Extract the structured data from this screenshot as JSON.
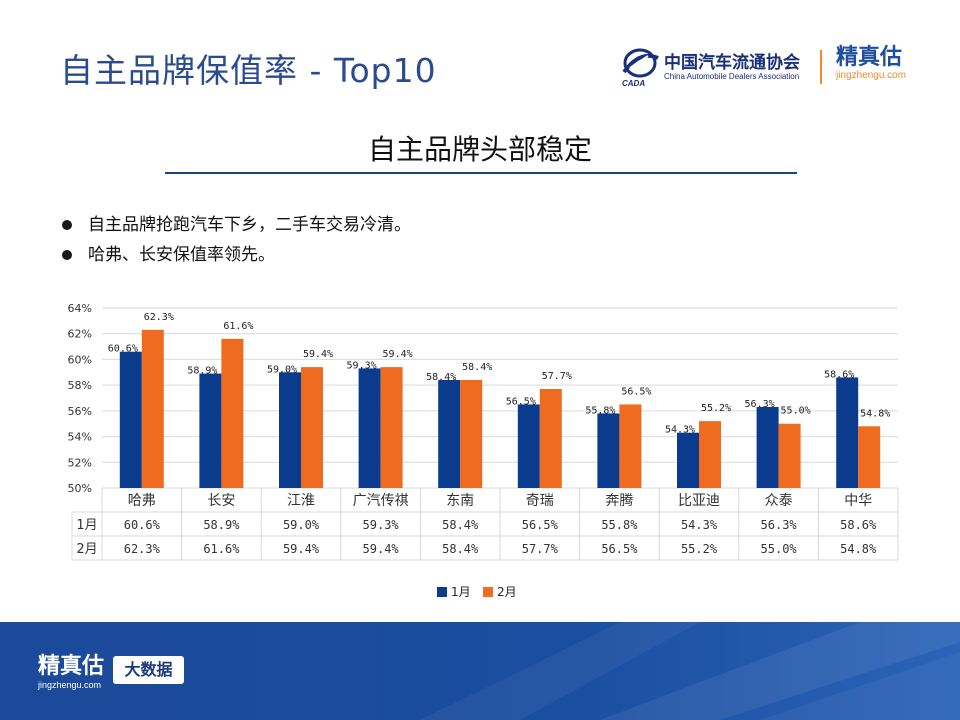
{
  "header": {
    "title": "自主品牌保值率 - Top10",
    "cada_cn": "中国汽车流通协会",
    "cada_en": "China Automobile Dealers Association",
    "cada_mark": "CADA",
    "jzg_cn": "精真估",
    "jzg_url": "jingzhengu.com"
  },
  "subtitle": "自主品牌头部稳定",
  "bullets": [
    "自主品牌抢跑汽车下乡，二手车交易冷清。",
    "哈弗、长安保值率领先。"
  ],
  "footer": {
    "logo_cn": "精真估",
    "logo_url": "jingzhengu.com",
    "badge": "大数据"
  },
  "colors": {
    "series1": "#0b3b8c",
    "series2": "#ef6b1f",
    "title": "#2a4c8f",
    "footer": "#1a4ea0"
  },
  "chart_data": {
    "type": "bar",
    "categories": [
      "哈弗",
      "长安",
      "江淮",
      "广汽传祺",
      "东南",
      "奇瑞",
      "奔腾",
      "比亚迪",
      "众泰",
      "中华"
    ],
    "series": [
      {
        "name": "1月",
        "values": [
          60.6,
          58.9,
          59.0,
          59.3,
          58.4,
          56.5,
          55.8,
          54.3,
          56.3,
          58.6
        ],
        "labels": [
          "60.6%",
          "58.9%",
          "59.0%",
          "59.3%",
          "58.4%",
          "56.5%",
          "55.8%",
          "54.3%",
          "56.3%",
          "58.6%"
        ]
      },
      {
        "name": "2月",
        "values": [
          62.3,
          61.6,
          59.4,
          59.4,
          58.4,
          57.7,
          56.5,
          55.2,
          55.0,
          54.8
        ],
        "labels": [
          "62.3%",
          "61.6%",
          "59.4%",
          "59.4%",
          "58.4%",
          "57.7%",
          "56.5%",
          "55.2%",
          "55.0%",
          "54.8%"
        ]
      }
    ],
    "table_rows": [
      {
        "name": "1月",
        "cells": [
          "60.6%",
          "58.9%",
          "59.0%",
          "59.3%",
          "58.4%",
          "56.5%",
          "55.8%",
          "54.3%",
          "56.3%",
          "58.6%"
        ]
      },
      {
        "name": "2月",
        "cells": [
          "62.3%",
          "61.6%",
          "59.4%",
          "59.4%",
          "58.4%",
          "57.7%",
          "56.5%",
          "55.2%",
          "55.0%",
          "54.8%"
        ]
      }
    ],
    "y_ticks": [
      "50%",
      "52%",
      "54%",
      "56%",
      "58%",
      "60%",
      "62%",
      "64%"
    ],
    "ylim": [
      50,
      64
    ],
    "grid": true,
    "legend": "bottom-center",
    "legend_labels": [
      "1月",
      "2月"
    ]
  }
}
